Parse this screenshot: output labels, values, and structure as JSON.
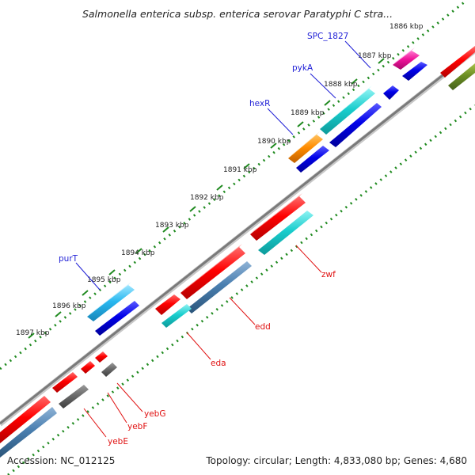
{
  "title": "Salmonella enterica subsp. enterica serovar Paratyphi C stra...",
  "footer": {
    "accession": "Accession: NC_012125",
    "topology": "Topology: circular; Length: 4,833,080 bp; Genes: 4,680"
  },
  "ticks": [
    "1886 kbp",
    "1887 kbp",
    "1888 kbp",
    "1889 kbp",
    "1890 kbp",
    "1891 kbp",
    "1892 kbp",
    "1893 kbp",
    "1894 kbp",
    "1895 kbp",
    "1896 kbp",
    "1897 kbp"
  ],
  "genes_outer": [
    "SPC_1827",
    "pykA",
    "hexR",
    "purT"
  ],
  "genes_inner": [
    "zwf",
    "edd",
    "eda",
    "yebG",
    "yebF",
    "yebE"
  ],
  "colors": {
    "outer_label": "#1f1fd6",
    "inner_label": "#e01010",
    "backbone": "#7a7a7a",
    "dots": "#1f8a1f"
  }
}
